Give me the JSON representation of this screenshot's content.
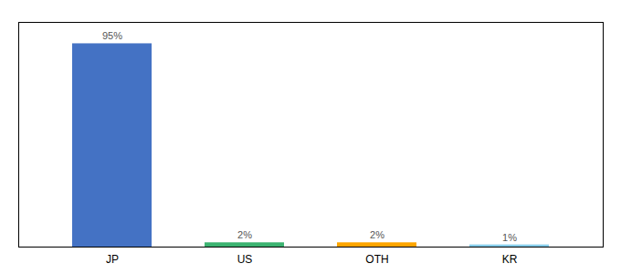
{
  "chart_data": {
    "type": "bar",
    "categories": [
      "JP",
      "US",
      "OTH",
      "KR"
    ],
    "values": [
      95,
      2,
      2,
      1
    ],
    "value_labels": [
      "95%",
      "2%",
      "2%",
      "1%"
    ],
    "colors": [
      "#4472C4",
      "#3CB371",
      "#FFA500",
      "#87CEEB"
    ],
    "ylim": [
      0,
      105
    ],
    "tick_labels": "x",
    "data_labels": true,
    "grid": false
  }
}
